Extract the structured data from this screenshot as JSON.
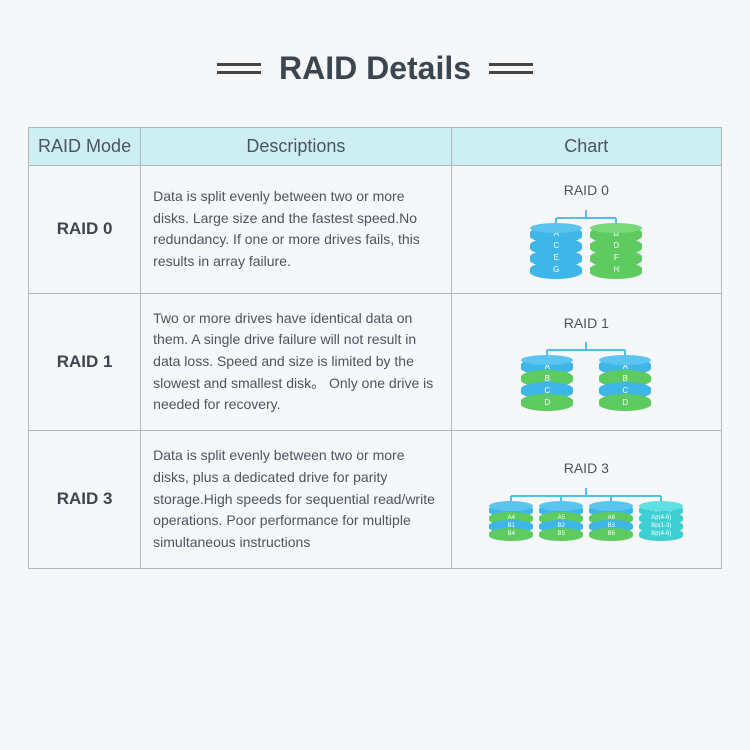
{
  "title": "RAID Details",
  "columns": [
    "RAID Mode",
    "Descriptions",
    "Chart"
  ],
  "rows": [
    {
      "mode": "RAID 0",
      "description": "Data is split evenly between two or more disks. Large size and the fastest speed.No redundancy. If one or more drives fails, this results in array failure.",
      "chart_title": "RAID 0",
      "disks": [
        {
          "color": "blue",
          "layers": [
            "A",
            "C",
            "E",
            "G"
          ]
        },
        {
          "color": "green",
          "layers": [
            "B",
            "D",
            "F",
            "H"
          ]
        }
      ],
      "disk_gap": 8,
      "disk_width": 52
    },
    {
      "mode": "RAID 1",
      "description": "Two or more drives have identical data on them. A single drive failure will not result in data loss. Speed and size is limited by the slowest and smallest disk。 Only one drive is needed for recovery.",
      "chart_title": "RAID 1",
      "disks": [
        {
          "colors": [
            "blue",
            "green",
            "blue",
            "green"
          ],
          "layers": [
            "A",
            "B",
            "C",
            "D"
          ]
        },
        {
          "colors": [
            "blue",
            "green",
            "blue",
            "green"
          ],
          "layers": [
            "A",
            "B",
            "C",
            "D"
          ]
        }
      ],
      "disk_gap": 26,
      "disk_width": 52
    },
    {
      "mode": "RAID 3",
      "description": "Data is split evenly between two or more disks, plus a dedicated drive for parity storage.High speeds for sequential read/write operations. Poor performance for multiple simultaneous instructions",
      "chart_title": "RAID 3",
      "disks": [
        {
          "colors": [
            "blue",
            "green",
            "blue",
            "green"
          ],
          "layers": [
            "A1",
            "A4",
            "B1",
            "B4"
          ]
        },
        {
          "colors": [
            "blue",
            "green",
            "blue",
            "green"
          ],
          "layers": [
            "A2",
            "A5",
            "B2",
            "B5"
          ]
        },
        {
          "colors": [
            "blue",
            "green",
            "blue",
            "green"
          ],
          "layers": [
            "A3",
            "A6",
            "B3",
            "B6"
          ]
        },
        {
          "colors": [
            "teal",
            "teal",
            "teal",
            "teal"
          ],
          "layers": [
            "Ap(1-3)",
            "Ap(4-6)",
            "Bp(1-3)",
            "Bp(4-6)"
          ]
        }
      ],
      "disk_gap": 6,
      "disk_width": 44
    }
  ],
  "colors": {
    "header_bg": "#cdeef2",
    "border": "#b0b8bc",
    "text": "#4a5560",
    "background": "#f5f7f8",
    "blue": "#3fb6e8",
    "blue_top": "#5bc5f0",
    "green": "#5ecb60",
    "green_top": "#78d978",
    "teal": "#3ecfd3",
    "teal_top": "#5fe0e3",
    "connector": "#4fc0e8"
  },
  "typography": {
    "title_fontsize": 32,
    "header_fontsize": 18,
    "body_fontsize": 14,
    "mode_fontsize": 17,
    "platter_fontsize": 8
  }
}
